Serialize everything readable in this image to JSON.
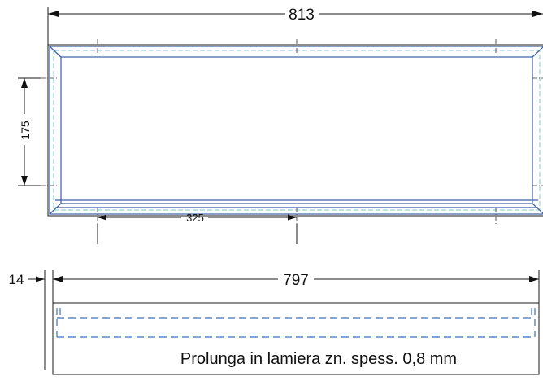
{
  "dimensions": {
    "overall_width": "813",
    "height": "175",
    "hole_spacing": "325",
    "extension_thickness": "14",
    "extension_width": "797"
  },
  "note": "Prolunga in lamiera zn. spess. 0,8 mm",
  "colors": {
    "outline": "#1a1a1a",
    "frame_blue": "#3a5fa6",
    "hidden_line_blue": "#3a6fc0",
    "inner_cyan": "#7fc8c8"
  }
}
